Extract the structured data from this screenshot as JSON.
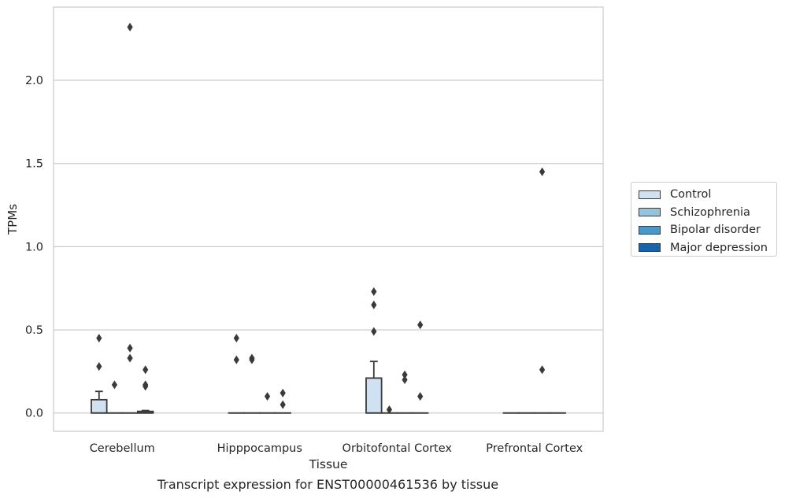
{
  "chart_data": {
    "type": "box",
    "title": "",
    "caption": "Transcript expression for ENST00000461536 by tissue",
    "xlabel": "Tissue",
    "ylabel": "TPMs",
    "ylim": [
      -0.11,
      2.44
    ],
    "yticks": [
      0.0,
      0.5,
      1.0,
      1.5,
      2.0
    ],
    "ytick_labels": [
      "0.0",
      "0.5",
      "1.0",
      "1.5",
      "2.0"
    ],
    "grid": "horizontal",
    "legend_position": "right",
    "categories": [
      "Cerebellum",
      "Hipppocampus",
      "Orbitofontal Cortex",
      "Prefrontal Cortex"
    ],
    "series": [
      {
        "name": "Control",
        "color": "#d0e1f2",
        "boxes": [
          {
            "q1": 0.0,
            "median": 0.0,
            "q3": 0.08,
            "whisker_low": 0.0,
            "whisker_high": 0.13,
            "outliers": [
              0.45,
              0.28
            ]
          },
          {
            "q1": 0.0,
            "median": 0.0,
            "q3": 0.0,
            "whisker_low": 0.0,
            "whisker_high": 0.0,
            "outliers": [
              0.45,
              0.32
            ]
          },
          {
            "q1": 0.0,
            "median": 0.0,
            "q3": 0.21,
            "whisker_low": 0.0,
            "whisker_high": 0.31,
            "outliers": [
              0.73,
              0.65,
              0.49
            ]
          },
          {
            "q1": 0.0,
            "median": 0.0,
            "q3": 0.0,
            "whisker_low": 0.0,
            "whisker_high": 0.0,
            "outliers": []
          }
        ]
      },
      {
        "name": "Schizophrenia",
        "color": "#94c4df",
        "boxes": [
          {
            "q1": 0.0,
            "median": 0.0,
            "q3": 0.0,
            "whisker_low": 0.0,
            "whisker_high": 0.0,
            "outliers": [
              0.17
            ]
          },
          {
            "q1": 0.0,
            "median": 0.0,
            "q3": 0.0,
            "whisker_low": 0.0,
            "whisker_high": 0.0,
            "outliers": [
              0.33,
              0.32
            ]
          },
          {
            "q1": 0.0,
            "median": 0.0,
            "q3": 0.0,
            "whisker_low": 0.0,
            "whisker_high": 0.0,
            "outliers": [
              0.02
            ]
          },
          {
            "q1": 0.0,
            "median": 0.0,
            "q3": 0.0,
            "whisker_low": 0.0,
            "whisker_high": 0.0,
            "outliers": []
          }
        ]
      },
      {
        "name": "Bipolar disorder",
        "color": "#4a98c9",
        "boxes": [
          {
            "q1": 0.0,
            "median": 0.0,
            "q3": 0.0,
            "whisker_low": 0.0,
            "whisker_high": 0.0,
            "outliers": [
              2.32,
              0.39,
              0.33
            ]
          },
          {
            "q1": 0.0,
            "median": 0.0,
            "q3": 0.0,
            "whisker_low": 0.0,
            "whisker_high": 0.0,
            "outliers": [
              0.1
            ]
          },
          {
            "q1": 0.0,
            "median": 0.0,
            "q3": 0.0,
            "whisker_low": 0.0,
            "whisker_high": 0.0,
            "outliers": [
              0.23,
              0.2
            ]
          },
          {
            "q1": 0.0,
            "median": 0.0,
            "q3": 0.0,
            "whisker_low": 0.0,
            "whisker_high": 0.0,
            "outliers": [
              1.45,
              0.26
            ]
          }
        ]
      },
      {
        "name": "Major depression",
        "color": "#1764ab",
        "boxes": [
          {
            "q1": 0.0,
            "median": 0.0,
            "q3": 0.01,
            "whisker_low": 0.0,
            "whisker_high": 0.015,
            "outliers": [
              0.26,
              0.17,
              0.16
            ]
          },
          {
            "q1": 0.0,
            "median": 0.0,
            "q3": 0.0,
            "whisker_low": 0.0,
            "whisker_high": 0.0,
            "outliers": [
              0.12,
              0.05
            ]
          },
          {
            "q1": 0.0,
            "median": 0.0,
            "q3": 0.0,
            "whisker_low": 0.0,
            "whisker_high": 0.0,
            "outliers": [
              0.53,
              0.1
            ]
          },
          {
            "q1": 0.0,
            "median": 0.0,
            "q3": 0.0,
            "whisker_low": 0.0,
            "whisker_high": 0.0,
            "outliers": []
          }
        ]
      }
    ]
  }
}
